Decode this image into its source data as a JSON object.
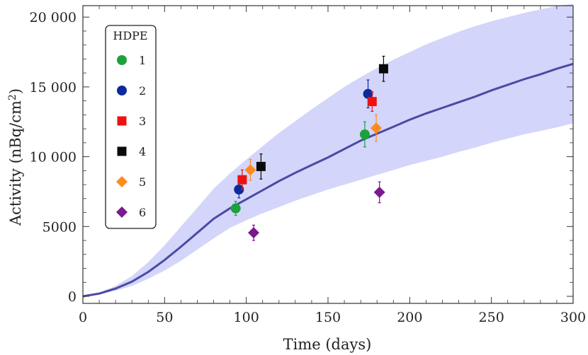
{
  "chart_data": {
    "type": "scatter",
    "title": "",
    "xlabel": "Time (days)",
    "ylabel_main": "Activity (nBq/cm",
    "ylabel_sup": "2",
    "ylabel_end": ")",
    "xlim": [
      0,
      300
    ],
    "ylim": [
      -400,
      20900
    ],
    "x_ticks": [
      0,
      50,
      100,
      150,
      200,
      250,
      300
    ],
    "x_tick_labels": [
      "0",
      "50",
      "100",
      "150",
      "200",
      "250",
      "300"
    ],
    "y_ticks": [
      0,
      5000,
      10000,
      15000,
      20000
    ],
    "y_tick_labels": [
      "0",
      "5000",
      "10 000",
      "15 000",
      "20 000"
    ],
    "legend_title": "HDPE",
    "legend_position": "top-left",
    "model_curve": {
      "x": [
        0,
        10,
        20,
        30,
        40,
        50,
        60,
        70,
        80,
        90,
        100,
        110,
        120,
        130,
        140,
        150,
        160,
        170,
        180,
        190,
        200,
        210,
        220,
        230,
        240,
        250,
        260,
        270,
        280,
        290,
        300
      ],
      "y": [
        0,
        200,
        550,
        1050,
        1750,
        2600,
        3550,
        4550,
        5550,
        6300,
        6950,
        7600,
        8250,
        8850,
        9400,
        9950,
        10550,
        11150,
        11650,
        12150,
        12650,
        13100,
        13500,
        13900,
        14300,
        14750,
        15150,
        15550,
        15900,
        16300,
        16650
      ],
      "lower": [
        0,
        150,
        400,
        750,
        1250,
        1850,
        2550,
        3350,
        4150,
        4900,
        5450,
        5950,
        6400,
        6850,
        7250,
        7650,
        8000,
        8350,
        8700,
        9050,
        9400,
        9700,
        10000,
        10350,
        10650,
        11000,
        11300,
        11600,
        11850,
        12100,
        12400
      ],
      "upper": [
        0,
        250,
        750,
        1450,
        2450,
        3650,
        5000,
        6350,
        7700,
        8800,
        9800,
        10750,
        11700,
        12550,
        13400,
        14200,
        15000,
        15700,
        16350,
        16950,
        17500,
        18050,
        18500,
        18950,
        19350,
        19700,
        20000,
        20300,
        20550,
        20800,
        20950
      ]
    },
    "series": [
      {
        "name": "1",
        "marker": "circle",
        "color": "#1aa33a",
        "points": [
          {
            "x": 93.5,
            "y": 6300,
            "err": 500
          },
          {
            "x": 172.5,
            "y": 11600,
            "err": 900
          }
        ]
      },
      {
        "name": "2",
        "marker": "circle",
        "color": "#0d2a9c",
        "points": [
          {
            "x": 95.5,
            "y": 7650,
            "err": 600
          },
          {
            "x": 174.5,
            "y": 14500,
            "err": 1000
          }
        ]
      },
      {
        "name": "3",
        "marker": "square",
        "color": "#ee1111",
        "points": [
          {
            "x": 97.5,
            "y": 8350,
            "err": 700
          },
          {
            "x": 177.0,
            "y": 13950,
            "err": 700
          }
        ]
      },
      {
        "name": "4",
        "marker": "square",
        "color": "#0a0a0a",
        "points": [
          {
            "x": 109.0,
            "y": 9300,
            "err": 900
          },
          {
            "x": 184.0,
            "y": 16300,
            "err": 900
          }
        ]
      },
      {
        "name": "5",
        "marker": "diamond",
        "color": "#ff8c1a",
        "points": [
          {
            "x": 102.5,
            "y": 9050,
            "err": 750
          },
          {
            "x": 179.5,
            "y": 12050,
            "err": 950
          }
        ]
      },
      {
        "name": "6",
        "marker": "diamond",
        "color": "#7a1a8e",
        "points": [
          {
            "x": 104.5,
            "y": 4550,
            "err": 550
          },
          {
            "x": 181.5,
            "y": 7450,
            "err": 750
          }
        ]
      }
    ],
    "colors": {
      "band": "#d3d5fa",
      "curve": "#4b4aa5",
      "frame": "#333333"
    }
  }
}
